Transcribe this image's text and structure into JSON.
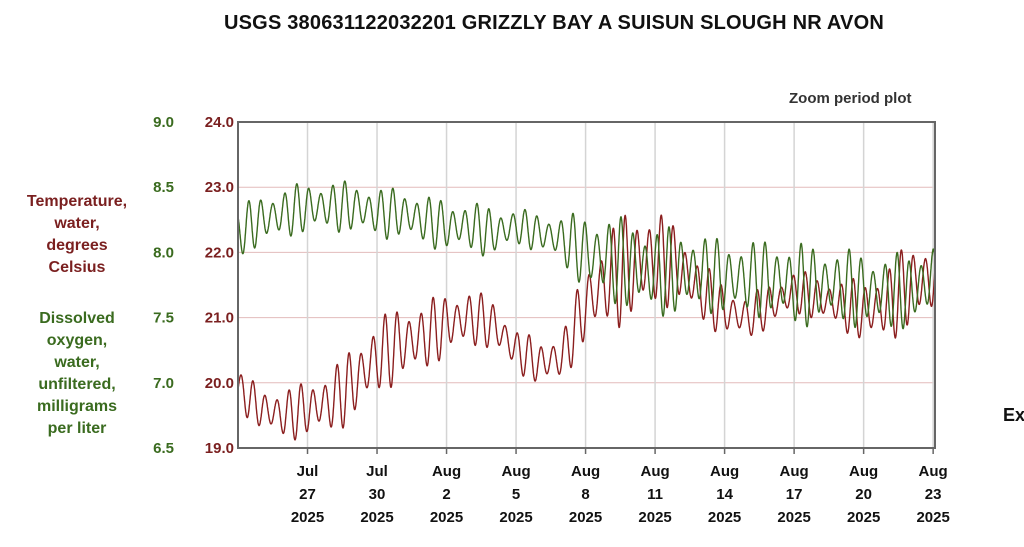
{
  "header": {
    "title": "USGS 380631122032201 GRIZZLY BAY A SUISUN SLOUGH NR AVON",
    "zoom_label": "Zoom period plot",
    "cut_off_text": "Ex"
  },
  "chart_data": {
    "type": "line",
    "y_left_outer": {
      "label_lines": [
        "Dissolved",
        "oxygen,",
        "water,",
        "unfiltered,",
        "milligrams",
        "per liter"
      ],
      "range": [
        6.5,
        9.0
      ],
      "ticks": [
        "9.0",
        "8.5",
        "8.0",
        "7.5",
        "7.0",
        "6.5"
      ],
      "color": "#3a6b1f"
    },
    "y_left_inner": {
      "label_lines": [
        "Temperature,",
        "water,",
        "degrees",
        "Celsius"
      ],
      "range": [
        19.0,
        24.0
      ],
      "ticks": [
        "24.0",
        "23.0",
        "22.0",
        "21.0",
        "20.0",
        "19.0"
      ],
      "color": "#7a1f1f"
    },
    "x_axis": {
      "range": [
        "2025-07-24",
        "2025-08-23"
      ],
      "ticks": [
        {
          "date": "2025-07-27",
          "l1": "Jul",
          "l2": "27",
          "l3": "2025"
        },
        {
          "date": "2025-07-30",
          "l1": "Jul",
          "l2": "30",
          "l3": "2025"
        },
        {
          "date": "2025-08-02",
          "l1": "Aug",
          "l2": "2",
          "l3": "2025"
        },
        {
          "date": "2025-08-05",
          "l1": "Aug",
          "l2": "5",
          "l3": "2025"
        },
        {
          "date": "2025-08-08",
          "l1": "Aug",
          "l2": "8",
          "l3": "2025"
        },
        {
          "date": "2025-08-11",
          "l1": "Aug",
          "l2": "11",
          "l3": "2025"
        },
        {
          "date": "2025-08-14",
          "l1": "Aug",
          "l2": "14",
          "l3": "2025"
        },
        {
          "date": "2025-08-17",
          "l1": "Aug",
          "l2": "17",
          "l3": "2025"
        },
        {
          "date": "2025-08-20",
          "l1": "Aug",
          "l2": "20",
          "l3": "2025"
        },
        {
          "date": "2025-08-23",
          "l1": "Aug",
          "l2": "23",
          "l3": "2025"
        }
      ]
    },
    "grid": true,
    "series": [
      {
        "color": "#8b1e1e",
        "axis": "temperature",
        "x": [
          "2025-07-24",
          "2025-07-25",
          "2025-07-26",
          "2025-07-27",
          "2025-07-28",
          "2025-07-29",
          "2025-07-30",
          "2025-07-31",
          "2025-08-01",
          "2025-08-02",
          "2025-08-03",
          "2025-08-04",
          "2025-08-05",
          "2025-08-06",
          "2025-08-07",
          "2025-08-08",
          "2025-08-09",
          "2025-08-10",
          "2025-08-11",
          "2025-08-12",
          "2025-08-13",
          "2025-08-14",
          "2025-08-15",
          "2025-08-16",
          "2025-08-17",
          "2025-08-18",
          "2025-08-19",
          "2025-08-20",
          "2025-08-21",
          "2025-08-22",
          "2025-08-23"
        ],
        "mean": [
          19.9,
          19.6,
          19.5,
          19.6,
          19.7,
          20.0,
          20.4,
          20.6,
          20.7,
          20.9,
          21.0,
          20.9,
          20.5,
          20.3,
          20.4,
          21.2,
          21.6,
          21.8,
          21.9,
          21.8,
          21.4,
          21.1,
          21.0,
          21.2,
          21.4,
          21.3,
          21.2,
          21.1,
          21.2,
          21.5,
          21.6
        ],
        "amplitude": [
          0.3,
          0.35,
          0.4,
          0.45,
          0.5,
          0.6,
          0.6,
          0.6,
          0.55,
          0.5,
          0.45,
          0.4,
          0.35,
          0.35,
          0.4,
          0.6,
          0.8,
          0.9,
          0.8,
          0.6,
          0.5,
          0.4,
          0.35,
          0.35,
          0.35,
          0.35,
          0.4,
          0.5,
          0.6,
          0.7,
          0.6
        ]
      },
      {
        "color": "#3a6b1f",
        "axis": "dissolved_oxygen",
        "x": [
          "2025-07-24",
          "2025-07-25",
          "2025-07-26",
          "2025-07-27",
          "2025-07-28",
          "2025-07-29",
          "2025-07-30",
          "2025-07-31",
          "2025-08-01",
          "2025-08-02",
          "2025-08-03",
          "2025-08-04",
          "2025-08-05",
          "2025-08-06",
          "2025-08-07",
          "2025-08-08",
          "2025-08-09",
          "2025-08-10",
          "2025-08-11",
          "2025-08-12",
          "2025-08-13",
          "2025-08-14",
          "2025-08-15",
          "2025-08-16",
          "2025-08-17",
          "2025-08-18",
          "2025-08-19",
          "2025-08-20",
          "2025-08-21",
          "2025-08-22",
          "2025-08-23"
        ],
        "mean": [
          8.15,
          8.25,
          8.3,
          8.35,
          8.35,
          8.35,
          8.3,
          8.3,
          8.25,
          8.2,
          8.2,
          8.15,
          8.2,
          8.15,
          8.1,
          8.0,
          7.95,
          7.9,
          7.85,
          7.85,
          7.85,
          7.8,
          7.8,
          7.8,
          7.75,
          7.75,
          7.75,
          7.7,
          7.7,
          7.7,
          7.8
        ],
        "amplitude": [
          0.2,
          0.2,
          0.2,
          0.2,
          0.2,
          0.2,
          0.2,
          0.2,
          0.2,
          0.2,
          0.2,
          0.2,
          0.15,
          0.15,
          0.2,
          0.3,
          0.35,
          0.35,
          0.35,
          0.35,
          0.3,
          0.3,
          0.3,
          0.3,
          0.35,
          0.3,
          0.3,
          0.3,
          0.3,
          0.3,
          0.3
        ]
      }
    ]
  }
}
